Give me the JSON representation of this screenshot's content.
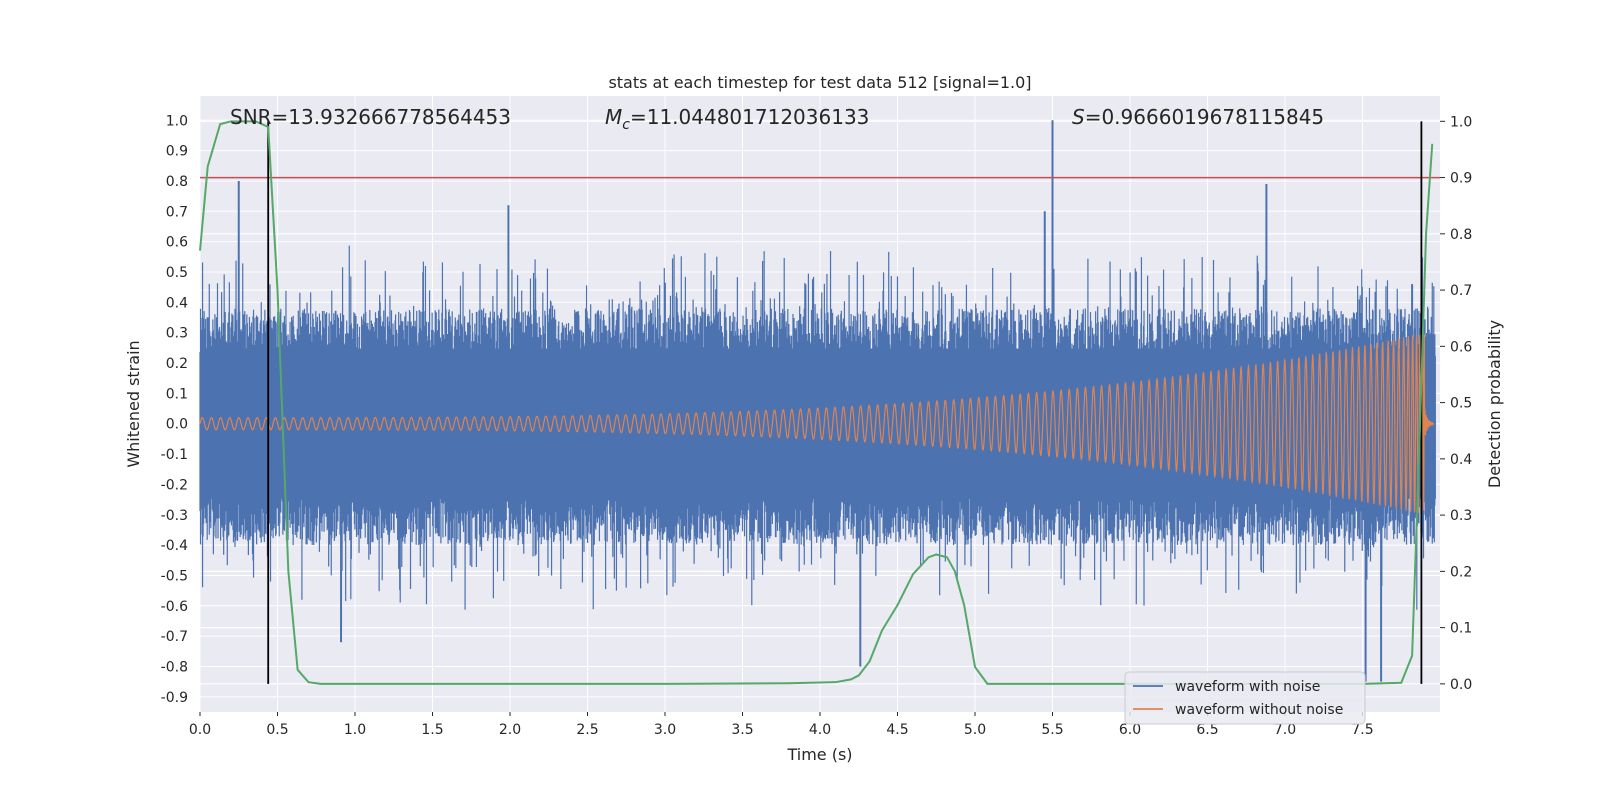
{
  "chart_data": {
    "type": "line",
    "title": "stats at each timestep for test data 512 [signal=1.0]",
    "xlabel": "Time (s)",
    "ylabel_left": "Whitened strain",
    "ylabel_right": "Detection probability",
    "xlim": [
      0.0,
      8.0
    ],
    "ylim_left": [
      -0.95,
      1.08
    ],
    "ylim_right": [
      -0.05,
      1.045
    ],
    "grid": true,
    "x_ticks": [
      "0.0",
      "0.5",
      "1.0",
      "1.5",
      "2.0",
      "2.5",
      "3.0",
      "3.5",
      "4.0",
      "4.5",
      "5.0",
      "5.5",
      "6.0",
      "6.5",
      "7.0",
      "7.5"
    ],
    "y_ticks_left": [
      "1.0",
      "0.9",
      "0.8",
      "0.7",
      "0.6",
      "0.5",
      "0.4",
      "0.3",
      "0.2",
      "0.1",
      "0.0",
      "-0.1",
      "-0.2",
      "-0.3",
      "-0.4",
      "-0.5",
      "-0.6",
      "-0.7",
      "-0.8",
      "-0.9"
    ],
    "y_ticks_right": [
      "1.0",
      "0.9",
      "0.8",
      "0.7",
      "0.6",
      "0.5",
      "0.4",
      "0.3",
      "0.2",
      "0.1",
      "0.0"
    ],
    "annotations": {
      "snr": "SNR=13.932666778564453",
      "mc_symbol": "M",
      "mc_sub": "c",
      "mc_value": "=11.044801712036133",
      "s_symbol": "S",
      "s_value": "=0.9666019678115845"
    },
    "vertical_lines_s": [
      0.44,
      7.88
    ],
    "threshold_probability": 0.9,
    "series": [
      {
        "name": "waveform with noise",
        "color": "#4c72b0",
        "axis": "left",
        "envelope_typical": 0.45,
        "max_peak": 1.0,
        "min_trough": -0.85,
        "notable_peaks": [
          [
            0.25,
            0.8
          ],
          [
            1.99,
            0.72
          ],
          [
            5.5,
            1.0
          ],
          [
            5.45,
            0.7
          ],
          [
            6.88,
            0.79
          ],
          [
            7.82,
            0.46
          ]
        ],
        "notable_troughs": [
          [
            0.91,
            -0.72
          ],
          [
            4.26,
            -0.8
          ],
          [
            7.52,
            -0.85
          ],
          [
            7.62,
            -0.85
          ]
        ]
      },
      {
        "name": "waveform without noise",
        "color": "#dd8452",
        "axis": "left",
        "amplitude_start": 0.02,
        "amplitude_end": 0.3,
        "chirp_end_s": 7.9
      },
      {
        "name": "detection probability",
        "color": "#55a868",
        "axis": "right",
        "x": [
          0.0,
          0.05,
          0.13,
          0.2,
          0.28,
          0.36,
          0.44,
          0.5,
          0.57,
          0.63,
          0.7,
          0.78,
          1.0,
          2.0,
          3.0,
          3.8,
          4.1,
          4.2,
          4.25,
          4.32,
          4.4,
          4.5,
          4.6,
          4.7,
          4.75,
          4.82,
          4.87,
          4.93,
          5.0,
          5.08,
          5.5,
          6.5,
          7.5,
          7.75,
          7.82,
          7.87,
          7.91,
          7.95
        ],
        "y": [
          0.77,
          0.92,
          0.995,
          1.0,
          1.0,
          1.0,
          0.99,
          0.7,
          0.2,
          0.025,
          0.003,
          0.0,
          0.0,
          0.0,
          0.0,
          0.001,
          0.003,
          0.008,
          0.015,
          0.04,
          0.095,
          0.14,
          0.195,
          0.225,
          0.23,
          0.225,
          0.2,
          0.14,
          0.03,
          0.0,
          0.0,
          0.0,
          0.0,
          0.002,
          0.05,
          0.45,
          0.8,
          0.96
        ]
      }
    ],
    "legend": {
      "location": "lower-right",
      "entries": [
        {
          "label": "waveform with noise",
          "color": "#4c72b0"
        },
        {
          "label": "waveform without noise",
          "color": "#dd8452"
        }
      ]
    }
  }
}
